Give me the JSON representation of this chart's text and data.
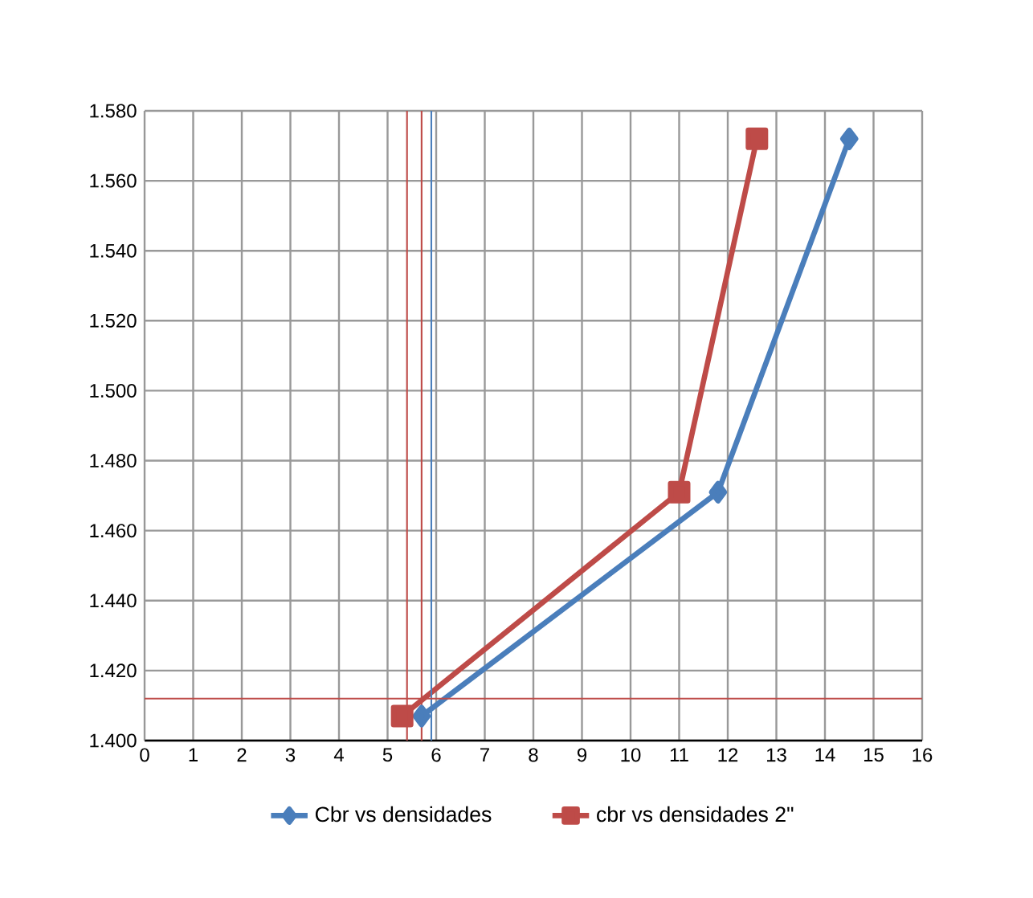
{
  "chart_data": {
    "type": "line",
    "series": [
      {
        "name": "Cbr vs densidades",
        "color": "#4a7ebb",
        "marker": "diamond",
        "x": [
          5.7,
          11.8,
          14.5
        ],
        "values": [
          1.407,
          1.471,
          1.572
        ]
      },
      {
        "name": "cbr vs densidades 2\"",
        "color": "#be4b48",
        "marker": "square",
        "x": [
          5.3,
          11.0,
          12.6
        ],
        "values": [
          1.407,
          1.471,
          1.572
        ]
      }
    ],
    "xlim": [
      0,
      16
    ],
    "xticks": [
      0,
      1,
      2,
      3,
      4,
      5,
      6,
      7,
      8,
      9,
      10,
      11,
      12,
      13,
      14,
      15,
      16
    ],
    "ylim": [
      1.4,
      1.58
    ],
    "yticks": [
      {
        "value": 1.4,
        "label": "1.400"
      },
      {
        "value": 1.42,
        "label": "1.420"
      },
      {
        "value": 1.44,
        "label": "1.440"
      },
      {
        "value": 1.46,
        "label": "1.460"
      },
      {
        "value": 1.48,
        "label": "1.480"
      },
      {
        "value": 1.5,
        "label": "1.500"
      },
      {
        "value": 1.52,
        "label": "1.520"
      },
      {
        "value": 1.54,
        "label": "1.540"
      },
      {
        "value": 1.56,
        "label": "1.560"
      },
      {
        "value": 1.58,
        "label": "1.580"
      }
    ],
    "ref_lines": [
      {
        "axis": "x",
        "value": 5.4,
        "color": "#be4b48"
      },
      {
        "axis": "x",
        "value": 5.7,
        "color": "#be4b48"
      },
      {
        "axis": "x",
        "value": 5.9,
        "color": "#4a7ebb"
      },
      {
        "axis": "y",
        "value": 1.412,
        "color": "#be4b48"
      }
    ],
    "grid": true,
    "legend": "bottom"
  }
}
